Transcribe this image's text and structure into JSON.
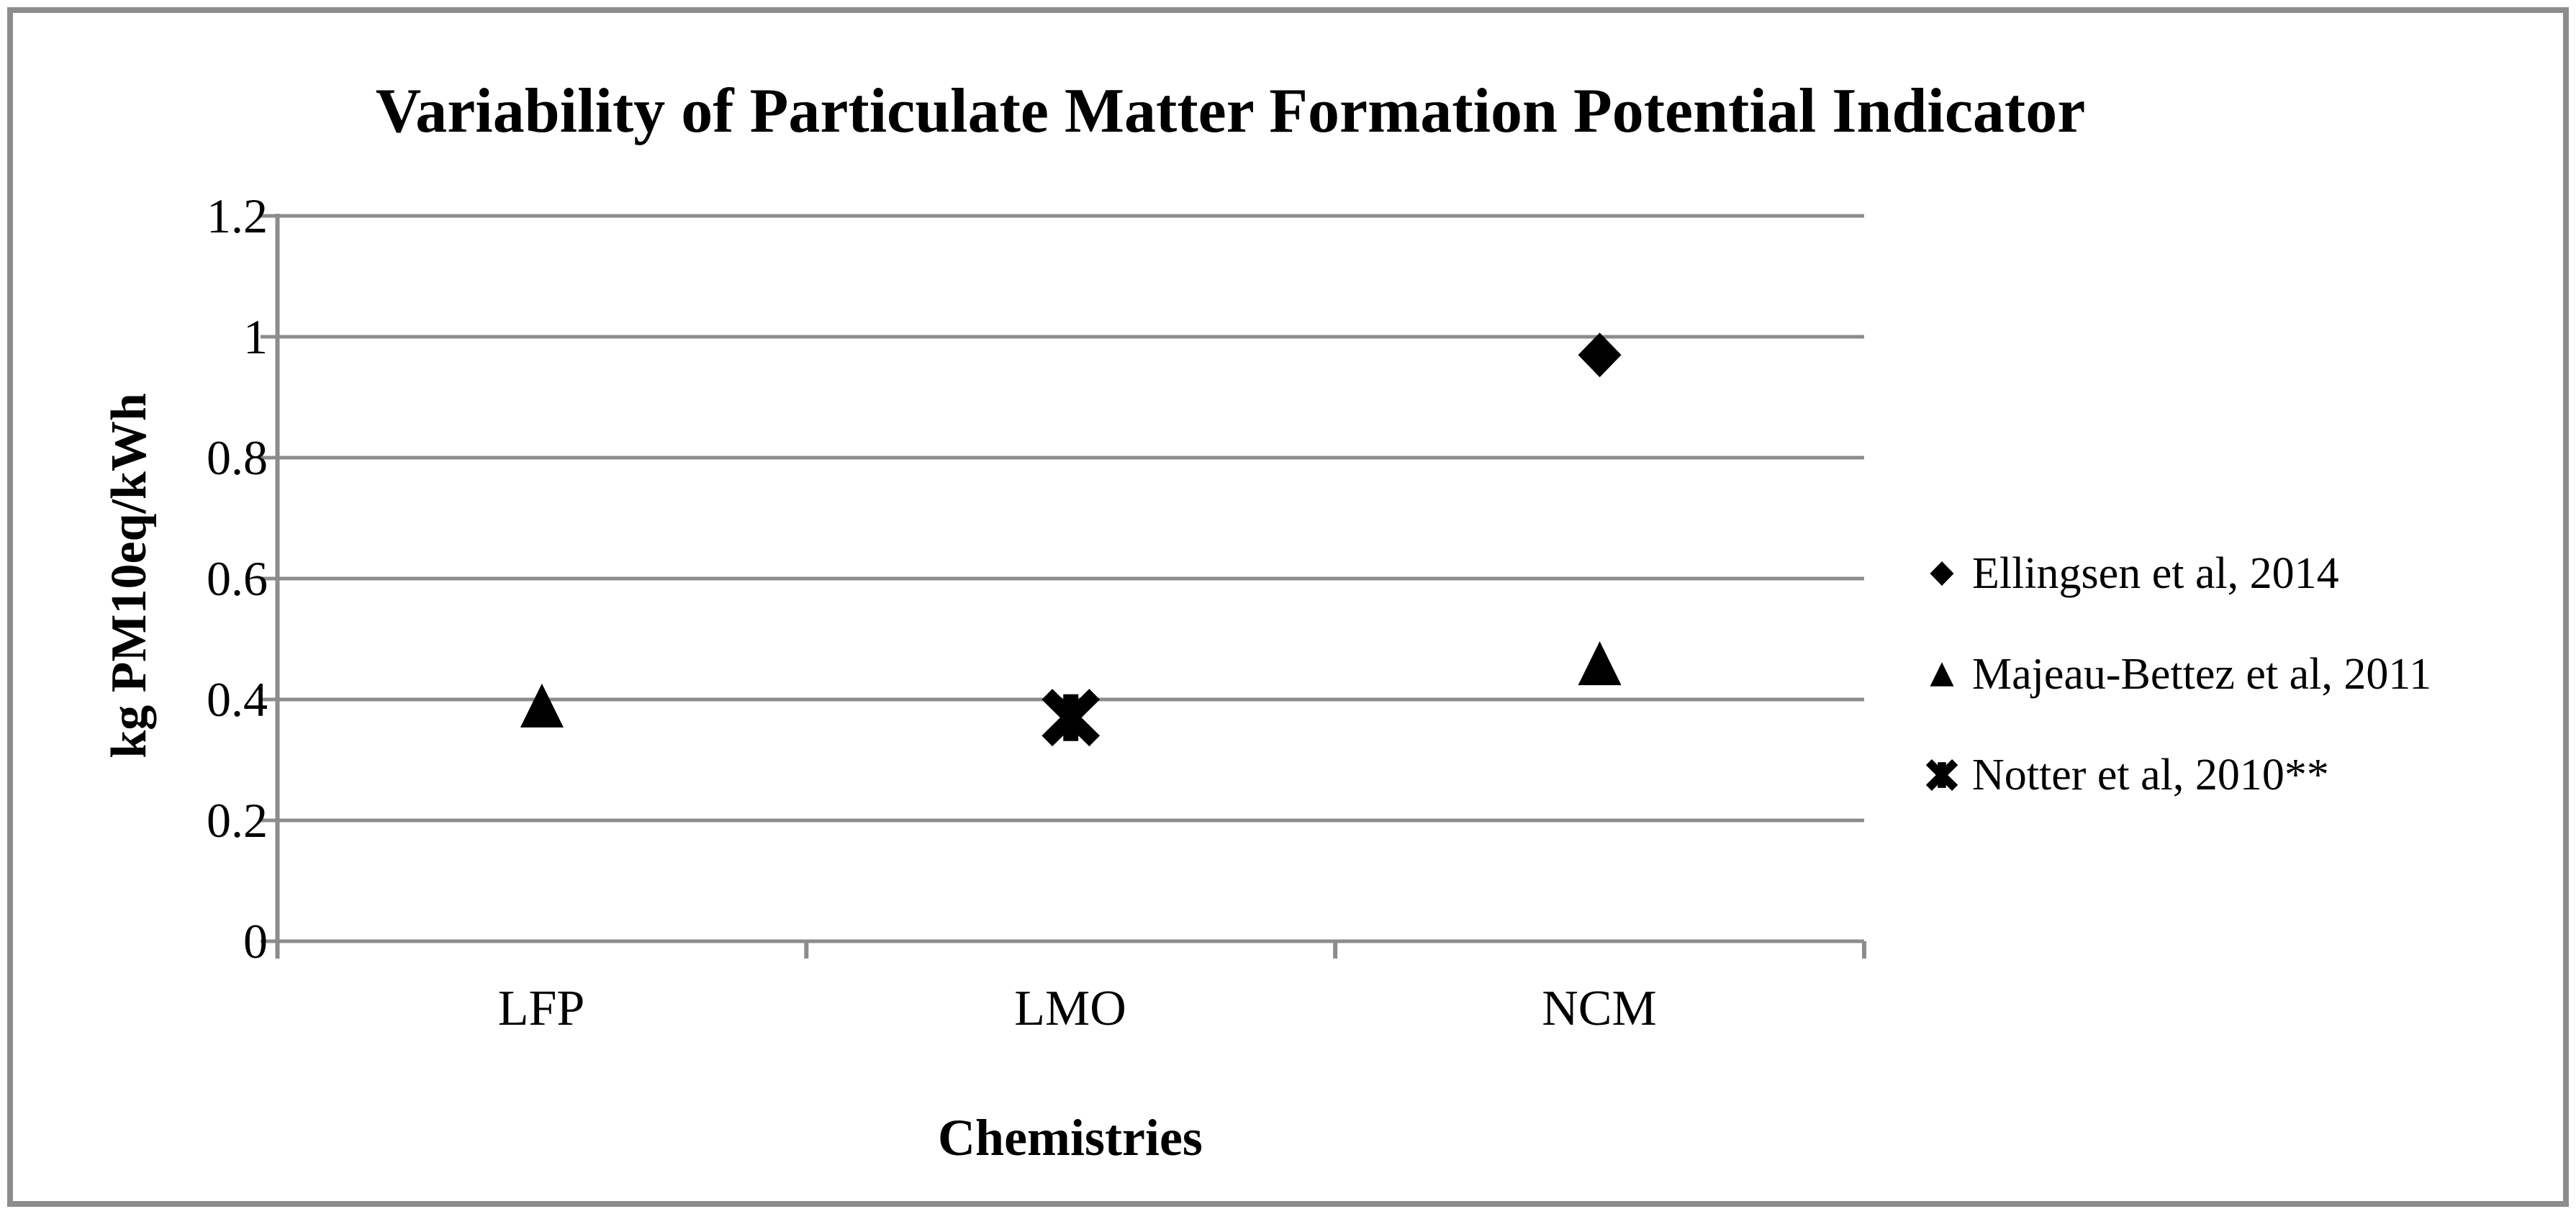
{
  "chart_data": {
    "type": "scatter",
    "title": "Variability of Particulate Matter Formation Potential Indicator",
    "xlabel": "Chemistries",
    "ylabel": "kg PM10eq/kWh",
    "categories": [
      "LFP",
      "LMO",
      "NCM"
    ],
    "ylim": [
      0,
      1.2
    ],
    "yticks": [
      0,
      0.2,
      0.4,
      0.6,
      0.8,
      1,
      1.2
    ],
    "ytick_labels": [
      "0",
      "0.2",
      "0.4",
      "0.6",
      "0.8",
      "1",
      "1.2"
    ],
    "grid": "horizontal",
    "legend_position": "right",
    "series": [
      {
        "name": "Ellingsen et al, 2014",
        "marker": "diamond",
        "color": "#000000",
        "points": [
          {
            "category": "NCM",
            "value": 0.97
          }
        ]
      },
      {
        "name": "Majeau-Bettez et al, 2011",
        "marker": "triangle",
        "color": "#000000",
        "points": [
          {
            "category": "LFP",
            "value": 0.39
          },
          {
            "category": "NCM",
            "value": 0.46
          }
        ]
      },
      {
        "name": "Notter et al, 2010**",
        "marker": "star",
        "color": "#000000",
        "points": [
          {
            "category": "LMO",
            "value": 0.37
          }
        ]
      }
    ],
    "colors": {
      "marker": "#000000",
      "gridline": "#8c8c8c",
      "axis": "#8c8c8c",
      "frame": "#8c8c8c",
      "text": "#000000",
      "background": "#ffffff"
    }
  }
}
